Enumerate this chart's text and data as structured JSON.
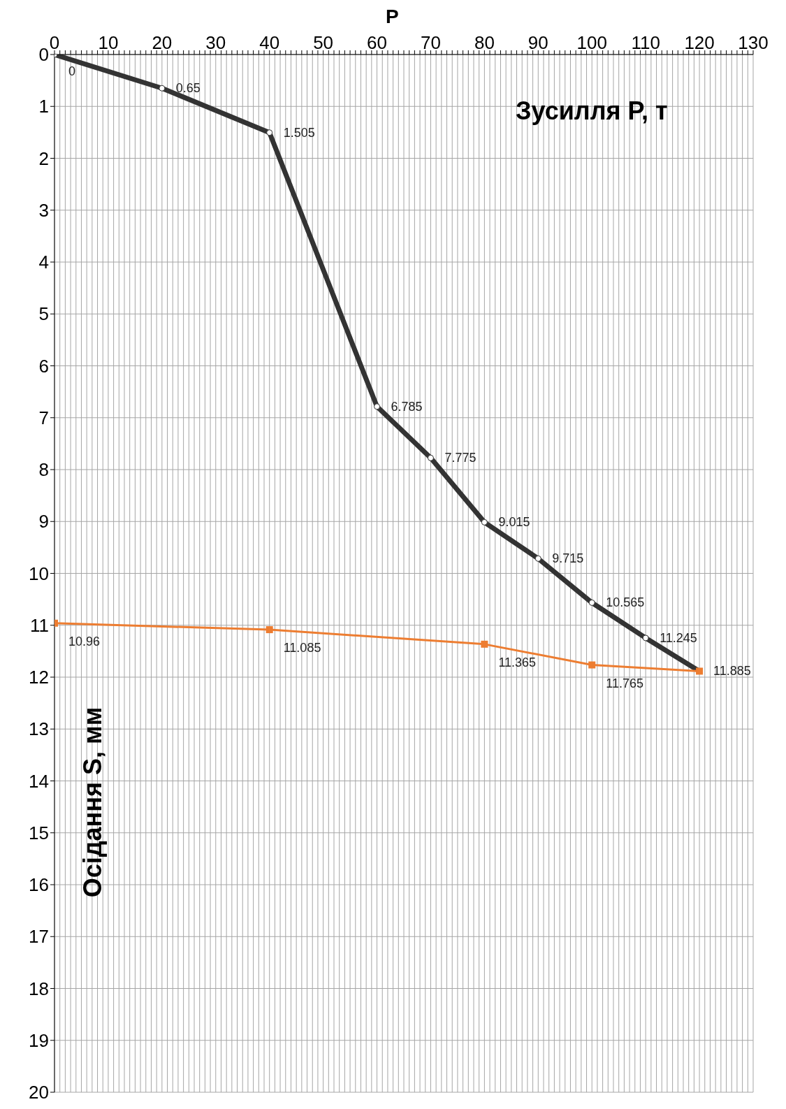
{
  "chart_data": {
    "type": "line",
    "xlabel": "P",
    "ylabel": "Осідання S, мм",
    "annotations": [
      "Зусилля P, т"
    ],
    "xlim": [
      0,
      130
    ],
    "xticks": [
      0,
      {
        "value": 1,
        "label": null
      },
      {
        "value": 2,
        "label": null
      },
      {
        "value": 3,
        "label": null
      },
      {
        "value": 4,
        "label": null
      },
      {
        "value": 5,
        "label": null
      },
      {
        "value": 6,
        "label": null
      },
      {
        "value": 7,
        "label": null
      },
      {
        "value": 8,
        "label": null
      },
      {
        "value": 9,
        "label": null
      },
      10,
      {
        "value": 11,
        "label": null
      },
      {
        "value": 12,
        "label": null
      },
      {
        "value": 13,
        "label": null
      },
      {
        "value": 14,
        "label": null
      },
      {
        "value": 15,
        "label": null
      },
      {
        "value": 16,
        "label": null
      },
      {
        "value": 17,
        "label": null
      },
      {
        "value": 18,
        "label": null
      },
      {
        "value": 19,
        "label": null
      },
      20,
      {
        "value": 21,
        "label": null
      },
      {
        "value": 22,
        "label": null
      },
      {
        "value": 23,
        "label": null
      },
      {
        "value": 24,
        "label": null
      },
      {
        "value": 25,
        "label": null
      },
      {
        "value": 26,
        "label": null
      },
      {
        "value": 27,
        "label": null
      },
      {
        "value": 28,
        "label": null
      },
      {
        "value": 29,
        "label": null
      },
      30,
      {
        "value": 31,
        "label": null
      },
      {
        "value": 32,
        "label": null
      },
      {
        "value": 33,
        "label": null
      },
      {
        "value": 34,
        "label": null
      },
      {
        "value": 35,
        "label": null
      },
      {
        "value": 36,
        "label": null
      },
      {
        "value": 37,
        "label": null
      },
      {
        "value": 38,
        "label": null
      },
      {
        "value": 39,
        "label": null
      },
      40,
      {
        "value": 41,
        "label": null
      },
      {
        "value": 42,
        "label": null
      },
      {
        "value": 43,
        "label": null
      },
      {
        "value": 44,
        "label": null
      },
      {
        "value": 45,
        "label": null
      },
      {
        "value": 46,
        "label": null
      },
      {
        "value": 47,
        "label": null
      },
      {
        "value": 48,
        "label": null
      },
      {
        "value": 49,
        "label": null
      },
      50,
      {
        "value": 51,
        "label": null
      },
      {
        "value": 52,
        "label": null
      },
      {
        "value": 53,
        "label": null
      },
      {
        "value": 54,
        "label": null
      },
      {
        "value": 55,
        "label": null
      },
      {
        "value": 56,
        "label": null
      },
      {
        "value": 57,
        "label": null
      },
      {
        "value": 58,
        "label": null
      },
      {
        "value": 59,
        "label": null
      },
      60,
      {
        "value": 61,
        "label": null
      },
      {
        "value": 62,
        "label": null
      },
      {
        "value": 63,
        "label": null
      },
      {
        "value": 64,
        "label": null
      },
      {
        "value": 65,
        "label": null
      },
      {
        "value": 66,
        "label": null
      },
      {
        "value": 67,
        "label": null
      },
      {
        "value": 68,
        "label": null
      },
      {
        "value": 69,
        "label": null
      },
      70,
      {
        "value": 71,
        "label": null
      },
      {
        "value": 72,
        "label": null
      },
      {
        "value": 73,
        "label": null
      },
      {
        "value": 74,
        "label": null
      },
      {
        "value": 75,
        "label": null
      },
      {
        "value": 76,
        "label": null
      },
      {
        "value": 77,
        "label": null
      },
      {
        "value": 78,
        "label": null
      },
      {
        "value": 79,
        "label": null
      },
      80,
      {
        "value": 81,
        "label": null
      },
      {
        "value": 82,
        "label": null
      },
      {
        "value": 83,
        "label": null
      },
      {
        "value": 84,
        "label": null
      },
      {
        "value": 85,
        "label": null
      },
      {
        "value": 86,
        "label": null
      },
      {
        "value": 87,
        "label": null
      },
      {
        "value": 88,
        "label": null
      },
      {
        "value": 89,
        "label": null
      },
      90,
      {
        "value": 91,
        "label": null
      },
      {
        "value": 92,
        "label": null
      },
      {
        "value": 93,
        "label": null
      },
      {
        "value": 94,
        "label": null
      },
      {
        "value": 95,
        "label": null
      },
      {
        "value": 96,
        "label": null
      },
      {
        "value": 97,
        "label": null
      },
      {
        "value": 98,
        "label": null
      },
      {
        "value": 99,
        "label": null
      },
      100,
      {
        "value": 101,
        "label": null
      },
      {
        "value": 102,
        "label": null
      },
      {
        "value": 103,
        "label": null
      },
      {
        "value": 104,
        "label": null
      },
      {
        "value": 105,
        "label": null
      },
      {
        "value": 106,
        "label": null
      },
      {
        "value": 107,
        "label": null
      },
      {
        "value": 108,
        "label": null
      },
      {
        "value": 109,
        "label": null
      },
      110,
      {
        "value": 111,
        "label": null
      },
      {
        "value": 112,
        "label": null
      },
      {
        "value": 113,
        "label": null
      },
      {
        "value": 114,
        "label": null
      },
      {
        "value": 115,
        "label": null
      },
      {
        "value": 116,
        "label": null
      },
      {
        "value": 117,
        "label": null
      },
      {
        "value": 118,
        "label": null
      },
      {
        "value": 119,
        "label": null
      },
      120,
      {
        "value": 121,
        "label": null
      },
      {
        "value": 122,
        "label": null
      },
      {
        "value": 123,
        "label": null
      },
      {
        "value": 124,
        "label": null
      },
      {
        "value": 125,
        "label": null
      },
      {
        "value": 126,
        "label": null
      },
      {
        "value": 127,
        "label": null
      },
      {
        "value": 128,
        "label": null
      },
      {
        "value": 129,
        "label": null
      },
      130
    ],
    "ylim": [
      20,
      0
    ],
    "yticks": [
      0,
      1,
      2,
      3,
      4,
      5,
      6,
      7,
      8,
      9,
      10,
      11,
      12,
      13,
      14,
      15,
      16,
      17,
      18,
      19,
      20
    ],
    "grid": true,
    "series": [
      {
        "color": "#333333",
        "marker": "circle",
        "x": [
          0,
          20,
          40,
          60,
          70,
          80,
          90,
          100,
          110,
          120
        ],
        "values": [
          0,
          0.65,
          1.505,
          6.785,
          7.775,
          9.015,
          9.715,
          10.565,
          11.245,
          11.885
        ],
        "value_labels": [
          "0",
          "0.65",
          "1.505",
          "6.785",
          "7.775",
          "9.015",
          "9.715",
          "10.565",
          "11.245",
          null
        ]
      },
      {
        "color": "#ed7d31",
        "marker": "square",
        "x": [
          0,
          40,
          80,
          100,
          120
        ],
        "values": [
          10.96,
          11.085,
          11.365,
          11.765,
          11.885
        ],
        "value_labels": [
          "10.96",
          "11.085",
          "11.365",
          "11.765",
          "11.885"
        ]
      }
    ]
  }
}
